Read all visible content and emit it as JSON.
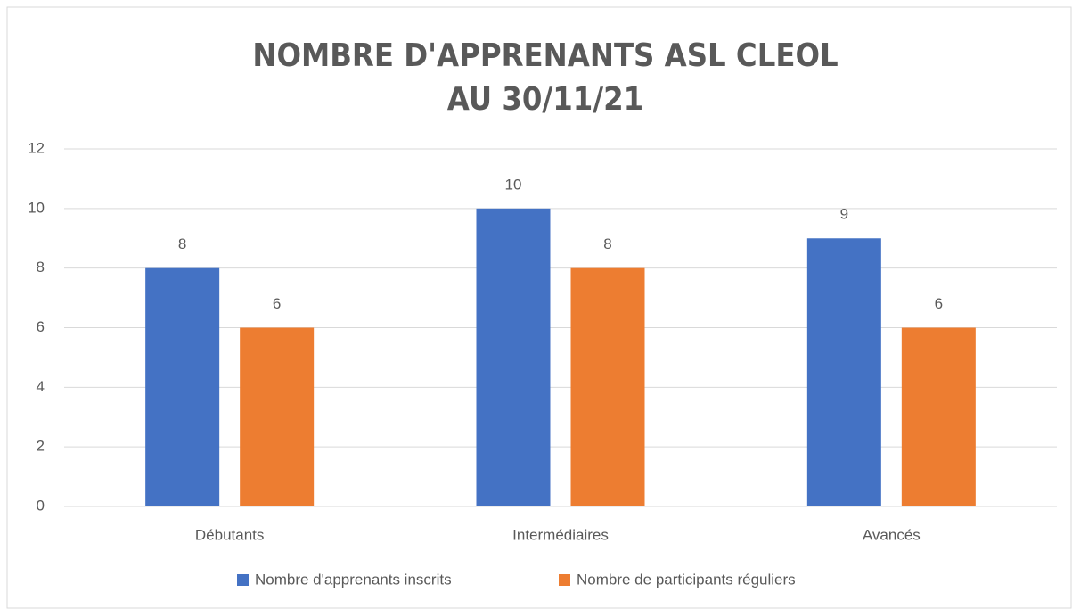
{
  "chart_data": {
    "type": "bar",
    "title": [
      "NOMBRE D'APPRENANTS ASL CLEOL",
      "AU 30/11/21"
    ],
    "categories": [
      "Débutants",
      "Intermédiaires",
      "Avancés"
    ],
    "series": [
      {
        "name": "Nombre d'apprenants inscrits",
        "color": "#4472c4",
        "values": [
          8,
          10,
          9
        ]
      },
      {
        "name": "Nombre de participants réguliers",
        "color": "#ed7d31",
        "values": [
          6,
          8,
          6
        ]
      }
    ],
    "ylim": [
      0,
      12
    ],
    "yticks": [
      0,
      2,
      4,
      6,
      8,
      10,
      12
    ],
    "grid": true,
    "legend": "bottom"
  }
}
